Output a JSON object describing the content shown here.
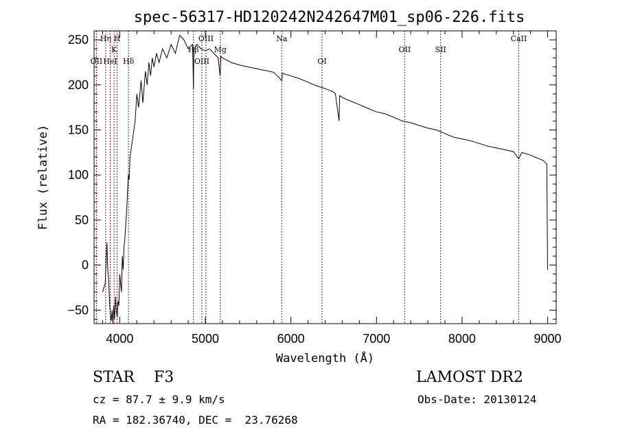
{
  "chart_data": {
    "type": "line",
    "title": "spec-56317-HD120242N242647M01_sp06-226.fits",
    "xlabel": "Wavelength (Å)",
    "ylabel": "Flux (relative)",
    "xlim": [
      3700,
      9100
    ],
    "ylim": [
      -65,
      260
    ],
    "xticks": [
      {
        "value": 4000,
        "label": "4000"
      },
      {
        "value": 5000,
        "label": "5000"
      },
      {
        "value": 6000,
        "label": "6000"
      },
      {
        "value": 7000,
        "label": "7000"
      },
      {
        "value": 8000,
        "label": "8000"
      },
      {
        "value": 9000,
        "label": "9000"
      }
    ],
    "yticks": [
      {
        "value": -50,
        "label": "−50"
      },
      {
        "value": 0,
        "label": "0"
      },
      {
        "value": 50,
        "label": "50"
      },
      {
        "value": 100,
        "label": "100"
      },
      {
        "value": 150,
        "label": "150"
      },
      {
        "value": 200,
        "label": "200"
      },
      {
        "value": 250,
        "label": "250"
      }
    ],
    "grid": false,
    "series": [
      {
        "color": "#000000",
        "x": [
          3800,
          3830,
          3850,
          3860,
          3870,
          3880,
          3890,
          3900,
          3910,
          3920,
          3930,
          3940,
          3950,
          3960,
          3970,
          3980,
          3990,
          4000,
          4010,
          4020,
          4030,
          4040,
          4050,
          4060,
          4080,
          4100,
          4110,
          4120,
          4150,
          4180,
          4200,
          4220,
          4250,
          4270,
          4300,
          4320,
          4340,
          4360,
          4380,
          4400,
          4430,
          4460,
          4500,
          4550,
          4600,
          4650,
          4700,
          4750,
          4800,
          4850,
          4855,
          4861,
          4866,
          4870,
          4900,
          4950,
          5000,
          5050,
          5100,
          5150,
          5172,
          5175,
          5180,
          5200,
          5300,
          5400,
          5500,
          5600,
          5700,
          5800,
          5893,
          5900,
          6000,
          6100,
          6200,
          6300,
          6400,
          6500,
          6520,
          6563,
          6570,
          6600,
          6700,
          6800,
          6900,
          7000,
          7100,
          7200,
          7300,
          7400,
          7500,
          7600,
          7700,
          7800,
          7900,
          8000,
          8100,
          8200,
          8300,
          8400,
          8500,
          8600,
          8662,
          8700,
          8800,
          8900,
          8950,
          8990,
          9000
        ],
        "y": [
          -30,
          -20,
          25,
          -5,
          -15,
          -40,
          -55,
          -62,
          -50,
          -65,
          -45,
          -60,
          -35,
          -50,
          -58,
          -40,
          -45,
          -10,
          -20,
          -30,
          10,
          -5,
          20,
          30,
          60,
          100,
          95,
          120,
          140,
          160,
          190,
          175,
          205,
          180,
          215,
          200,
          225,
          210,
          230,
          220,
          235,
          225,
          240,
          230,
          245,
          235,
          255,
          250,
          240,
          245,
          230,
          195,
          235,
          240,
          245,
          240,
          238,
          240,
          235,
          230,
          210,
          215,
          232,
          230,
          225,
          222,
          220,
          218,
          216,
          214,
          205,
          213,
          210,
          207,
          203,
          199,
          196,
          192,
          190,
          160,
          188,
          186,
          182,
          178,
          174,
          170,
          168,
          164,
          160,
          158,
          155,
          152,
          150,
          146,
          142,
          140,
          138,
          135,
          132,
          130,
          128,
          126,
          118,
          125,
          122,
          118,
          116,
          112,
          -5
        ]
      }
    ],
    "lines": [
      {
        "label": "OII",
        "wavelength": 3727
      },
      {
        "label": "Hη",
        "wavelength": 3835
      },
      {
        "label": "HeI",
        "wavelength": 3889
      },
      {
        "label": "K",
        "wavelength": 3934
      },
      {
        "label": "H",
        "wavelength": 3969
      },
      {
        "label": "Hδ",
        "wavelength": 4102
      },
      {
        "label": "Hβ",
        "wavelength": 4861
      },
      {
        "label": "OIII",
        "wavelength": 4959
      },
      {
        "label": "OIII",
        "wavelength": 5007
      },
      {
        "label": "Mg",
        "wavelength": 5175
      },
      {
        "label": "Na",
        "wavelength": 5893
      },
      {
        "label": "OI",
        "wavelength": 6364
      },
      {
        "label": "OII",
        "wavelength": 7330
      },
      {
        "label": "SII",
        "wavelength": 7750
      },
      {
        "label": "CaII",
        "wavelength": 8662
      }
    ]
  },
  "info": {
    "class": "STAR    F3",
    "survey": "LAMOST DR2",
    "cz": "cz = 87.7 ± 9.9 km/s",
    "obs_date": "Obs-Date: 20130124",
    "radec": "RA = 182.36740, DEC =  23.76268"
  }
}
